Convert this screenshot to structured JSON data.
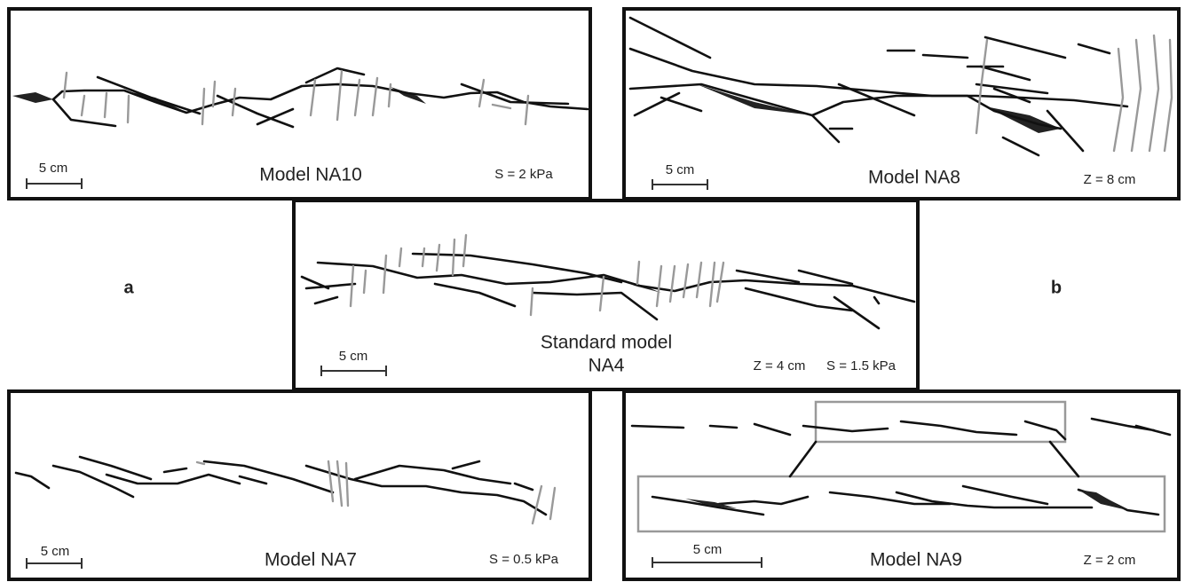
{
  "labels": [
    "a",
    "b"
  ],
  "panels": [
    {
      "title_lines": [
        "Model NA10"
      ],
      "params": [
        "S = 2 kPa"
      ],
      "scale": "5 cm"
    },
    {
      "title_lines": [
        "Model NA8"
      ],
      "params": [
        "Z = 8 cm"
      ],
      "scale": "5 cm"
    },
    {
      "title_lines": [
        "Standard model",
        "NA4"
      ],
      "params": [
        "Z = 4 cm",
        "S = 1.5 kPa"
      ],
      "scale": "5 cm"
    },
    {
      "title_lines": [
        "Model NA7"
      ],
      "params": [
        "S = 0.5 kPa"
      ],
      "scale": "5 cm"
    },
    {
      "title_lines": [
        "Model NA9"
      ],
      "params": [
        "Z = 2 cm"
      ],
      "scale": "5 cm"
    }
  ]
}
